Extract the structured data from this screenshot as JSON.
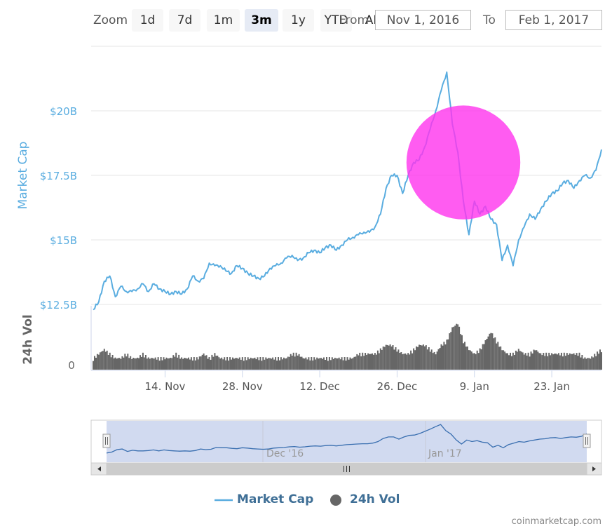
{
  "toolbar": {
    "zoom_label": "Zoom",
    "buttons": [
      "1d",
      "7d",
      "1m",
      "3m",
      "1y",
      "YTD",
      "ALL"
    ],
    "active": "3m",
    "from_label": "From",
    "from_value": "Nov 1, 2016",
    "to_label": "To",
    "to_value": "Feb 1, 2017"
  },
  "colors": {
    "market_cap": "#5aade0",
    "volume": "#666666",
    "highlight": "#ff33ee",
    "navigator_fill": "#ccd6ee"
  },
  "chart_data": {
    "type": "line",
    "title": "",
    "x_start": "2016-11-01",
    "x_end": "2017-02-01",
    "x_ticks": [
      "14. Nov",
      "28. Nov",
      "12. Dec",
      "26. Dec",
      "9. Jan",
      "23. Jan"
    ],
    "y_label": "Market Cap",
    "y_ticks": [
      "$12.5B",
      "$15B",
      "$17.5B",
      "$20B"
    ],
    "y_range": [
      12.5,
      22.5
    ],
    "volume_label": "24h Vol",
    "volume_ticks": [
      "0"
    ],
    "volume_range": [
      0,
      14
    ],
    "navigator_labels": [
      "Dec '16",
      "Jan '17"
    ],
    "series": [
      {
        "name": "Market Cap",
        "x": [
          "2016-11-01",
          "2016-11-02",
          "2016-11-03",
          "2016-11-04",
          "2016-11-05",
          "2016-11-06",
          "2016-11-07",
          "2016-11-08",
          "2016-11-09",
          "2016-11-10",
          "2016-11-11",
          "2016-11-12",
          "2016-11-13",
          "2016-11-14",
          "2016-11-15",
          "2016-11-16",
          "2016-11-17",
          "2016-11-18",
          "2016-11-19",
          "2016-11-20",
          "2016-11-21",
          "2016-11-22",
          "2016-11-23",
          "2016-11-24",
          "2016-11-25",
          "2016-11-26",
          "2016-11-27",
          "2016-11-28",
          "2016-11-29",
          "2016-11-30",
          "2016-12-01",
          "2016-12-02",
          "2016-12-03",
          "2016-12-04",
          "2016-12-05",
          "2016-12-06",
          "2016-12-07",
          "2016-12-08",
          "2016-12-09",
          "2016-12-10",
          "2016-12-11",
          "2016-12-12",
          "2016-12-13",
          "2016-12-14",
          "2016-12-15",
          "2016-12-16",
          "2016-12-17",
          "2016-12-18",
          "2016-12-19",
          "2016-12-20",
          "2016-12-21",
          "2016-12-22",
          "2016-12-23",
          "2016-12-24",
          "2016-12-25",
          "2016-12-26",
          "2016-12-27",
          "2016-12-28",
          "2016-12-29",
          "2016-12-30",
          "2016-12-31",
          "2017-01-01",
          "2017-01-02",
          "2017-01-03",
          "2017-01-04",
          "2017-01-05",
          "2017-01-06",
          "2017-01-07",
          "2017-01-08",
          "2017-01-09",
          "2017-01-10",
          "2017-01-11",
          "2017-01-12",
          "2017-01-13",
          "2017-01-14",
          "2017-01-15",
          "2017-01-16",
          "2017-01-17",
          "2017-01-18",
          "2017-01-19",
          "2017-01-20",
          "2017-01-21",
          "2017-01-22",
          "2017-01-23",
          "2017-01-24",
          "2017-01-25",
          "2017-01-26",
          "2017-01-27",
          "2017-01-28",
          "2017-01-29",
          "2017-01-30",
          "2017-01-31",
          "2017-02-01"
        ],
        "values": [
          12.3,
          12.6,
          13.4,
          13.6,
          12.8,
          13.2,
          13.0,
          13.0,
          13.1,
          13.3,
          13.0,
          13.3,
          13.1,
          13.0,
          12.9,
          13.0,
          12.9,
          13.1,
          13.6,
          13.4,
          13.5,
          14.1,
          14.0,
          14.0,
          13.8,
          13.7,
          14.0,
          13.9,
          13.7,
          13.6,
          13.5,
          13.6,
          13.9,
          14.0,
          14.1,
          14.3,
          14.4,
          14.2,
          14.3,
          14.5,
          14.6,
          14.5,
          14.7,
          14.8,
          14.6,
          14.8,
          15.0,
          15.1,
          15.2,
          15.3,
          15.3,
          15.5,
          16.0,
          17.0,
          17.5,
          17.5,
          16.8,
          17.5,
          18.0,
          18.1,
          18.6,
          19.3,
          20.0,
          20.8,
          21.5,
          19.5,
          18.4,
          16.5,
          15.2,
          16.5,
          16.0,
          16.3,
          15.8,
          15.6,
          14.2,
          14.8,
          14.0,
          15.0,
          15.5,
          16.0,
          15.8,
          16.2,
          16.5,
          16.8,
          16.9,
          17.2,
          17.3,
          17.0,
          17.3,
          17.5,
          17.4,
          17.7,
          18.5
        ]
      },
      {
        "name": "24h Vol",
        "values": [
          2,
          3,
          4,
          3,
          2,
          2,
          3,
          2,
          2,
          3,
          2,
          2,
          2,
          2,
          2,
          3,
          2,
          2,
          2,
          2,
          3,
          2,
          3,
          2,
          2,
          2,
          2,
          2,
          2,
          2,
          2,
          2,
          2,
          2,
          2,
          2,
          3,
          3,
          2,
          2,
          2,
          2,
          2,
          2,
          2,
          2,
          2,
          2,
          3,
          3,
          3,
          3,
          4,
          5,
          5,
          4,
          3,
          3,
          4,
          5,
          5,
          4,
          3,
          5,
          6,
          9,
          10,
          6,
          4,
          3,
          4,
          6,
          8,
          6,
          4,
          3,
          3,
          4,
          3,
          3,
          4,
          3,
          3,
          3,
          3,
          3,
          3,
          3,
          3,
          2,
          2,
          3,
          4
        ]
      }
    ]
  },
  "highlight": {
    "center_date": "2017-01-07",
    "center_value": 18.0,
    "radius_days": 10.3
  },
  "legend": {
    "market_cap": "Market Cap",
    "volume": "24h Vol"
  },
  "footer": {
    "credit": "coinmarketcap.com"
  }
}
